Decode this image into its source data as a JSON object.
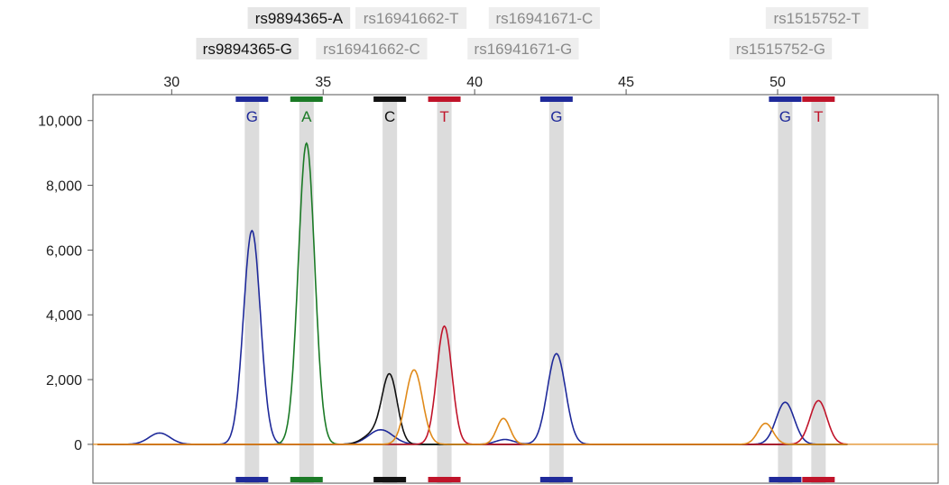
{
  "chart_data": {
    "type": "line",
    "title": "",
    "xlabel": "",
    "ylabel": "",
    "xlim": [
      27.4,
      55.3
    ],
    "ylim": [
      -1200,
      10800
    ],
    "x_ticks": [
      {
        "value": 30,
        "label": "30"
      },
      {
        "value": 35,
        "label": "35"
      },
      {
        "value": 40,
        "label": "40"
      },
      {
        "value": 45,
        "label": "45"
      },
      {
        "value": 50,
        "label": "50"
      }
    ],
    "y_ticks": [
      {
        "value": 0,
        "label": "0"
      },
      {
        "value": 2000,
        "label": "2,000"
      },
      {
        "value": 4000,
        "label": "4,000"
      },
      {
        "value": 6000,
        "label": "6,000"
      },
      {
        "value": 8000,
        "label": "8,000"
      },
      {
        "value": 10000,
        "label": "10,000"
      }
    ],
    "colors": {
      "G": "#1f2a9a",
      "A": "#1b7a26",
      "C": "#111111",
      "T": "#c0142a",
      "orange": "#e08a1a"
    },
    "snp_labels": [
      {
        "text": "rs9894365-A",
        "x": 34.2,
        "row": 1,
        "active": true
      },
      {
        "text": "rs9894365-G",
        "x": 32.5,
        "row": 2,
        "active": true
      },
      {
        "text": "rs16941662-T",
        "x": 37.9,
        "row": 1,
        "active": false
      },
      {
        "text": "rs16941662-C",
        "x": 36.6,
        "row": 2,
        "active": false
      },
      {
        "text": "rs16941671-C",
        "x": 42.3,
        "row": 1,
        "active": false
      },
      {
        "text": "rs16941671-G",
        "x": 41.6,
        "row": 2,
        "active": false
      },
      {
        "text": "rs1515752-T",
        "x": 51.3,
        "row": 1,
        "active": false
      },
      {
        "text": "rs1515752-G",
        "x": 50.1,
        "row": 2,
        "active": false
      }
    ],
    "base_calls": [
      {
        "base": "G",
        "x": 32.65,
        "color": "G"
      },
      {
        "base": "A",
        "x": 34.45,
        "color": "A"
      },
      {
        "base": "C",
        "x": 37.2,
        "color": "C"
      },
      {
        "base": "T",
        "x": 39.0,
        "color": "T"
      },
      {
        "base": "G",
        "x": 42.7,
        "color": "G"
      },
      {
        "base": "G",
        "x": 50.25,
        "color": "G"
      },
      {
        "base": "T",
        "x": 51.35,
        "color": "T"
      }
    ],
    "series": [
      {
        "color": "G",
        "peaks": [
          {
            "x": 29.6,
            "height": 350,
            "width": 0.35
          },
          {
            "x": 32.65,
            "height": 6600,
            "width": 0.28
          },
          {
            "x": 36.9,
            "height": 450,
            "width": 0.4
          },
          {
            "x": 41.0,
            "height": 150,
            "width": 0.3
          },
          {
            "x": 42.7,
            "height": 2800,
            "width": 0.3
          },
          {
            "x": 50.25,
            "height": 1300,
            "width": 0.3
          }
        ]
      },
      {
        "color": "A",
        "peaks": [
          {
            "x": 34.45,
            "height": 9300,
            "width": 0.27
          }
        ]
      },
      {
        "color": "C",
        "peaks": [
          {
            "x": 36.7,
            "height": 350,
            "width": 0.35
          },
          {
            "x": 37.2,
            "height": 2050,
            "width": 0.25
          }
        ]
      },
      {
        "color": "T",
        "peaks": [
          {
            "x": 39.0,
            "height": 3650,
            "width": 0.25
          },
          {
            "x": 51.35,
            "height": 1350,
            "width": 0.28
          }
        ]
      },
      {
        "color": "orange",
        "peaks": [
          {
            "x": 38.0,
            "height": 2300,
            "width": 0.28
          },
          {
            "x": 40.95,
            "height": 800,
            "width": 0.22
          },
          {
            "x": 49.6,
            "height": 650,
            "width": 0.25
          }
        ]
      }
    ]
  }
}
